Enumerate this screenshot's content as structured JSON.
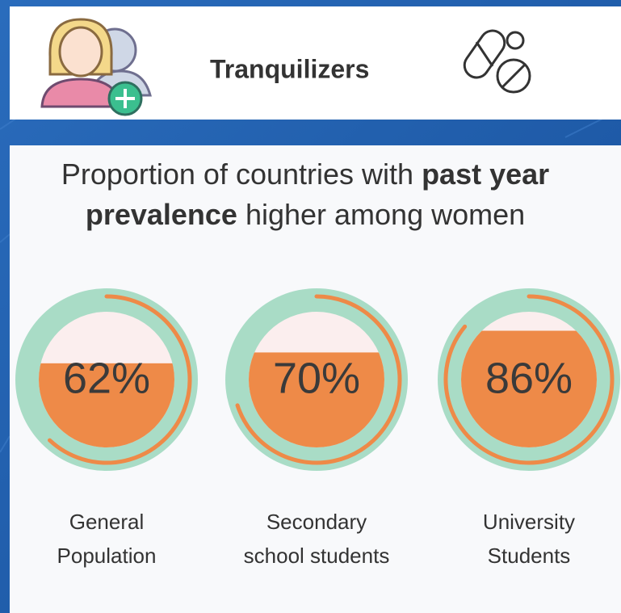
{
  "header": {
    "title": "Tranquilizers"
  },
  "chart_data": {
    "type": "gauge",
    "title": [
      [
        {
          "text": "Proportion of countries with "
        },
        {
          "text": "past year",
          "bold": true
        }
      ],
      [
        {
          "text": "prevalence",
          "bold": true
        },
        {
          "text": " higher among women"
        }
      ]
    ],
    "categories": [
      [
        "General",
        "Population"
      ],
      [
        "Secondary",
        "school students"
      ],
      [
        "University",
        "Students"
      ]
    ],
    "values": [
      62,
      70,
      86
    ],
    "value_labels": [
      "62%",
      "70%",
      "86%"
    ],
    "color": "#ee8a48",
    "ring_color": "#a9dcc6",
    "empty_color": "#fbeeee"
  }
}
